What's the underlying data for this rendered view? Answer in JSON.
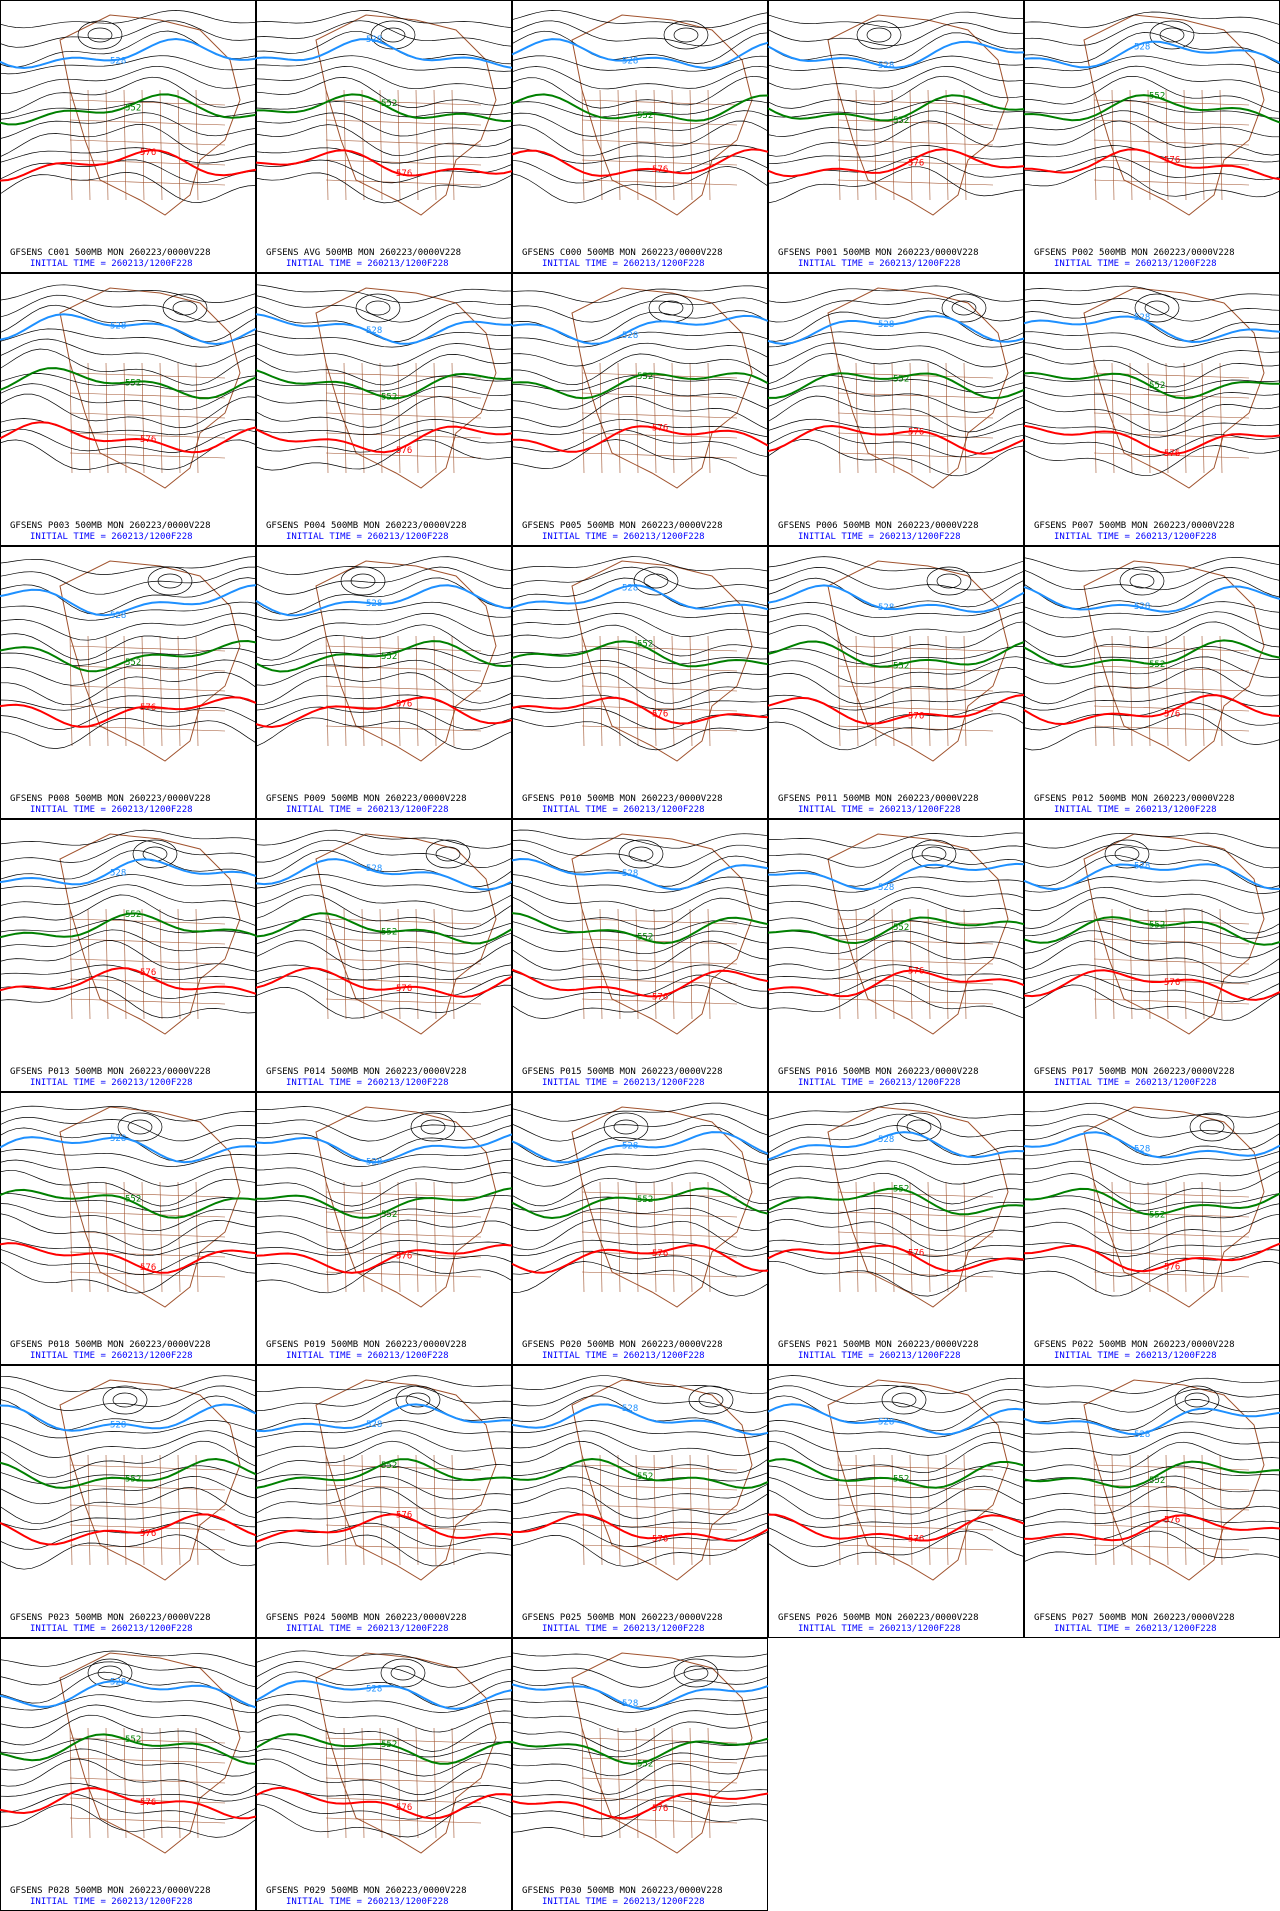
{
  "panels": [
    {
      "title": "GFSENS C001 500MB MON 260223/0000V228",
      "init": "INITIAL TIME = 260213/1200F228",
      "contours": [
        "528",
        "552",
        "576"
      ]
    },
    {
      "title": "GFSENS AVG 500MB MON 260223/0000V228",
      "init": "INITIAL TIME = 260213/1200F228",
      "contours": [
        "528",
        "552",
        "576"
      ]
    },
    {
      "title": "GFSENS C000 500MB MON 260223/0000V228",
      "init": "INITIAL TIME = 260213/1200F228",
      "contours": [
        "528",
        "552",
        "576"
      ]
    },
    {
      "title": "GFSENS P001 500MB MON 260223/0000V228",
      "init": "INITIAL TIME = 260213/1200F228",
      "contours": [
        "528",
        "552",
        "576"
      ]
    },
    {
      "title": "GFSENS P002 500MB MON 260223/0000V228",
      "init": "INITIAL TIME = 260213/1200F228",
      "contours": [
        "528",
        "552",
        "576"
      ]
    },
    {
      "title": "GFSENS P003 500MB MON 260223/0000V228",
      "init": "INITIAL TIME = 260213/1200F228",
      "contours": [
        "528",
        "552",
        "576"
      ]
    },
    {
      "title": "GFSENS P004 500MB MON 260223/0000V228",
      "init": "INITIAL TIME = 260213/1200F228",
      "contours": [
        "528",
        "552",
        "576"
      ]
    },
    {
      "title": "GFSENS P005 500MB MON 260223/0000V228",
      "init": "INITIAL TIME = 260213/1200F228",
      "contours": [
        "528",
        "552",
        "576"
      ]
    },
    {
      "title": "GFSENS P006 500MB MON 260223/0000V228",
      "init": "INITIAL TIME = 260213/1200F228",
      "contours": [
        "528",
        "552",
        "576"
      ]
    },
    {
      "title": "GFSENS P007 500MB MON 260223/0000V228",
      "init": "INITIAL TIME = 260213/1200F228",
      "contours": [
        "528",
        "552",
        "576"
      ]
    },
    {
      "title": "GFSENS P008 500MB MON 260223/0000V228",
      "init": "INITIAL TIME = 260213/1200F228",
      "contours": [
        "528",
        "552",
        "576"
      ]
    },
    {
      "title": "GFSENS P009 500MB MON 260223/0000V228",
      "init": "INITIAL TIME = 260213/1200F228",
      "contours": [
        "528",
        "552",
        "576"
      ]
    },
    {
      "title": "GFSENS P010 500MB MON 260223/0000V228",
      "init": "INITIAL TIME = 260213/1200F228",
      "contours": [
        "528",
        "552",
        "576"
      ]
    },
    {
      "title": "GFSENS P011 500MB MON 260223/0000V228",
      "init": "INITIAL TIME = 260213/1200F228",
      "contours": [
        "528",
        "552",
        "576"
      ]
    },
    {
      "title": "GFSENS P012 500MB MON 260223/0000V228",
      "init": "INITIAL TIME = 260213/1200F228",
      "contours": [
        "528",
        "552",
        "576"
      ]
    },
    {
      "title": "GFSENS P013 500MB MON 260223/0000V228",
      "init": "INITIAL TIME = 260213/1200F228",
      "contours": [
        "528",
        "552",
        "576"
      ]
    },
    {
      "title": "GFSENS P014 500MB MON 260223/0000V228",
      "init": "INITIAL TIME = 260213/1200F228",
      "contours": [
        "528",
        "552",
        "576"
      ]
    },
    {
      "title": "GFSENS P015 500MB MON 260223/0000V228",
      "init": "INITIAL TIME = 260213/1200F228",
      "contours": [
        "528",
        "552",
        "576"
      ]
    },
    {
      "title": "GFSENS P016 500MB MON 260223/0000V228",
      "init": "INITIAL TIME = 260213/1200F228",
      "contours": [
        "528",
        "552",
        "576"
      ]
    },
    {
      "title": "GFSENS P017 500MB MON 260223/0000V228",
      "init": "INITIAL TIME = 260213/1200F228",
      "contours": [
        "528",
        "552",
        "576"
      ]
    },
    {
      "title": "GFSENS P018 500MB MON 260223/0000V228",
      "init": "INITIAL TIME = 260213/1200F228",
      "contours": [
        "528",
        "552",
        "576"
      ]
    },
    {
      "title": "GFSENS P019 500MB MON 260223/0000V228",
      "init": "INITIAL TIME = 260213/1200F228",
      "contours": [
        "528",
        "552",
        "576"
      ]
    },
    {
      "title": "GFSENS P020 500MB MON 260223/0000V228",
      "init": "INITIAL TIME = 260213/1200F228",
      "contours": [
        "528",
        "552",
        "576"
      ]
    },
    {
      "title": "GFSENS P021 500MB MON 260223/0000V228",
      "init": "INITIAL TIME = 260213/1200F228",
      "contours": [
        "528",
        "552",
        "576"
      ]
    },
    {
      "title": "GFSENS P022 500MB MON 260223/0000V228",
      "init": "INITIAL TIME = 260213/1200F228",
      "contours": [
        "528",
        "552",
        "576"
      ]
    },
    {
      "title": "GFSENS P023 500MB MON 260223/0000V228",
      "init": "INITIAL TIME = 260213/1200F228",
      "contours": [
        "528",
        "552",
        "576"
      ]
    },
    {
      "title": "GFSENS P024 500MB MON 260223/0000V228",
      "init": "INITIAL TIME = 260213/1200F228",
      "contours": [
        "528",
        "552",
        "576"
      ]
    },
    {
      "title": "GFSENS P025 500MB MON 260223/0000V228",
      "init": "INITIAL TIME = 260213/1200F228",
      "contours": [
        "528",
        "552",
        "576"
      ]
    },
    {
      "title": "GFSENS P026 500MB MON 260223/0000V228",
      "init": "INITIAL TIME = 260213/1200F228",
      "contours": [
        "528",
        "552",
        "576"
      ]
    },
    {
      "title": "GFSENS P027 500MB MON 260223/0000V228",
      "init": "INITIAL TIME = 260213/1200F228",
      "contours": [
        "528",
        "552",
        "576"
      ]
    },
    {
      "title": "GFSENS P028 500MB MON 260223/0000V228",
      "init": "INITIAL TIME = 260213/1200F228",
      "contours": [
        "528",
        "552",
        "576"
      ]
    },
    {
      "title": "GFSENS P029 500MB MON 260223/0000V228",
      "init": "INITIAL TIME = 260213/1200F228",
      "contours": [
        "528",
        "552",
        "576"
      ]
    },
    {
      "title": "GFSENS P030 500MB MON 260223/0000V228",
      "init": "INITIAL TIME = 260213/1200F228",
      "contours": [
        "528",
        "552",
        "576"
      ]
    }
  ]
}
